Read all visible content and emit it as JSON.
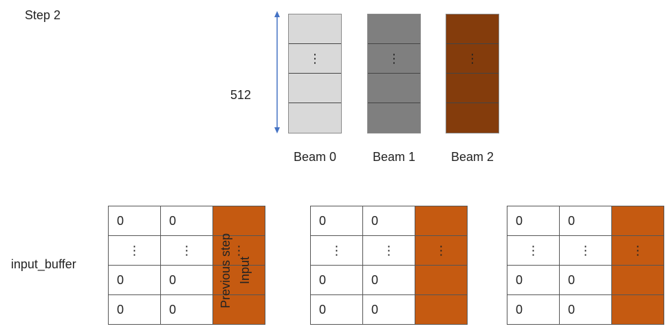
{
  "step_label": "Step 2",
  "dimension_label": "512",
  "vdots": "⋮",
  "colors": {
    "beam0": "#d9d9d9",
    "beam1": "#7f7f7f",
    "beam2": "#843c0c",
    "buffer_highlight": "#c55a11",
    "arrow": "#4472c4"
  },
  "beams": [
    {
      "label": "Beam 0"
    },
    {
      "label": "Beam 1"
    },
    {
      "label": "Beam 2"
    }
  ],
  "input_buffer": {
    "label": "input_buffer",
    "annotation_line1": "Previous step",
    "annotation_line2": "Input",
    "zero": "0",
    "dots": "⋮"
  }
}
